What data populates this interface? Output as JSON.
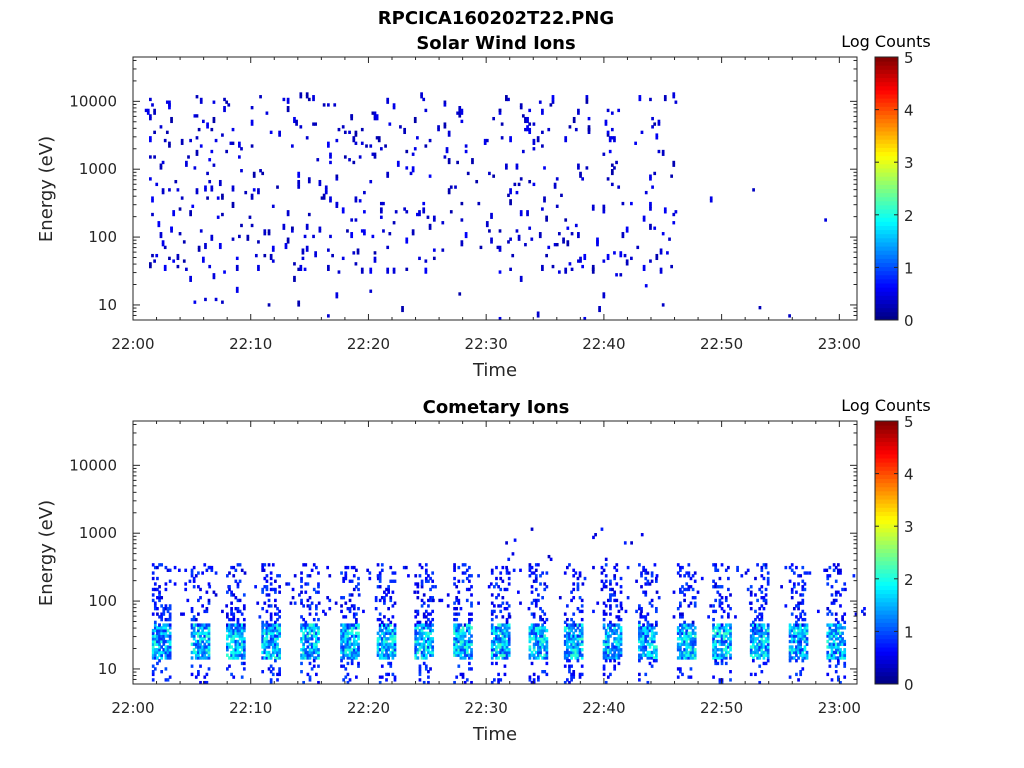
{
  "figure_title": "RPCICA160202T22.PNG",
  "chart_data": [
    {
      "type": "heatmap",
      "title": "Solar Wind Ions",
      "xlabel": "Time",
      "ylabel": "Energy (eV)",
      "x_ticks": [
        "22:00",
        "22:10",
        "22:20",
        "22:30",
        "22:40",
        "22:50",
        "23:00"
      ],
      "x_range_min": [
        0,
        61.5
      ],
      "y_scale": "log",
      "y_ticks": [
        "10",
        "100",
        "1000",
        "10000"
      ],
      "y_range_eV": [
        6,
        45000
      ],
      "colorbar": {
        "label": "Log Counts",
        "range": [
          0,
          5
        ],
        "ticks": [
          "0",
          "1",
          "2",
          "3",
          "4",
          "5"
        ],
        "colormap": "jet"
      },
      "grid": false,
      "seed": 7,
      "clusters": [
        {
          "t": [
            1,
            46
          ],
          "e": [
            30,
            12000
          ],
          "rate": 0.42,
          "level": [
            0.2,
            0.6
          ]
        },
        {
          "t": [
            1,
            45
          ],
          "e": [
            6,
            35
          ],
          "rate": 0.06,
          "level": [
            0.2,
            0.6
          ]
        },
        {
          "t": [
            49,
            60
          ],
          "e": [
            100,
            900
          ],
          "rate": 0.05,
          "level": [
            0.2,
            0.5
          ]
        },
        {
          "t": [
            49,
            60
          ],
          "e": [
            6,
            30
          ],
          "rate": 0.03,
          "level": [
            0.2,
            0.5
          ]
        }
      ]
    },
    {
      "type": "heatmap",
      "title": "Cometary Ions",
      "xlabel": "Time",
      "ylabel": "Energy (eV)",
      "x_ticks": [
        "22:00",
        "22:10",
        "22:20",
        "22:30",
        "22:40",
        "22:50",
        "23:00"
      ],
      "x_range_min": [
        0,
        61.5
      ],
      "y_scale": "log",
      "y_ticks": [
        "10",
        "100",
        "1000",
        "10000"
      ],
      "y_range_eV": [
        6,
        45000
      ],
      "colorbar": {
        "label": "Log Counts",
        "range": [
          0,
          5
        ],
        "ticks": [
          "0",
          "1",
          "2",
          "3",
          "4",
          "5"
        ],
        "colormap": "jet"
      },
      "grid": false,
      "seed": 23,
      "bursts_min": [
        2.2,
        5.5,
        8.5,
        11.5,
        14.8,
        18.2,
        21.3,
        24.5,
        27.8,
        31.0,
        34.2,
        37.2,
        40.5,
        43.5,
        46.8,
        49.8,
        53.0,
        56.3,
        59.5
      ],
      "burst_core_eV": [
        15,
        45
      ],
      "burst_core_level": [
        0.8,
        2.2
      ],
      "burst_halo_eV": [
        60,
        350
      ],
      "burst_halo_level": [
        0.4,
        1.0
      ],
      "sparse_high": {
        "t": [
          30,
          46
        ],
        "e": [
          300,
          1100
        ],
        "rate": 0.08,
        "level": [
          0.3,
          0.8
        ]
      }
    }
  ]
}
